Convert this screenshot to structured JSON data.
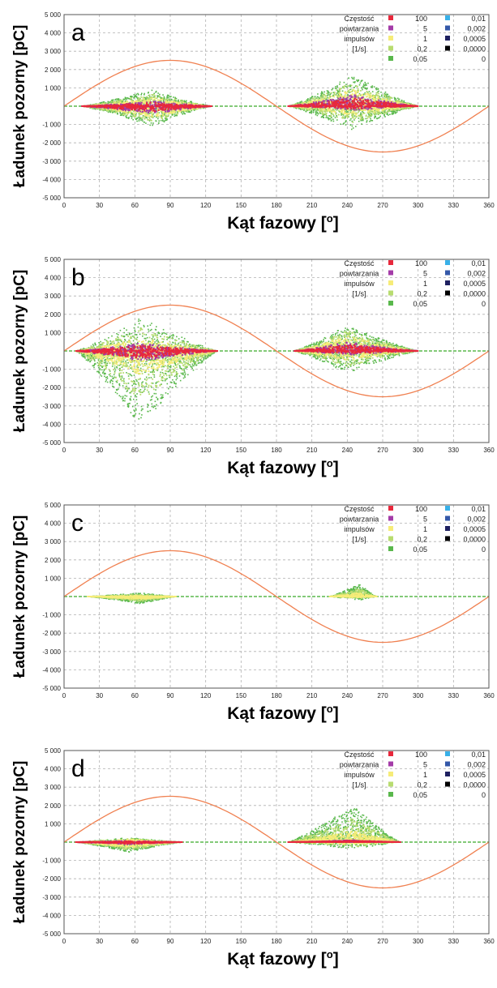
{
  "chart_data": [
    {
      "type": "scatter",
      "panel_letter": "a",
      "xlabel": "Kąt fazowy [",
      "xlabel_sup": "o",
      "xlabel_end": "]",
      "ylabel": "Ładunek pozorny [pC]",
      "xlim": [
        0,
        360
      ],
      "ylim": [
        -5000,
        5000
      ],
      "x_ticks": [
        0,
        30,
        60,
        90,
        120,
        150,
        180,
        210,
        240,
        270,
        300,
        330,
        360
      ],
      "y_ticks": [
        5000,
        4000,
        3000,
        2000,
        1000,
        -1000,
        -2000,
        -3000,
        -4000,
        -5000
      ],
      "y_tick_labels": [
        "5 000",
        "4 000",
        "3 000",
        "2 000",
        "1 000",
        "-1 000",
        "-2 000",
        "-3 000",
        "-4 000",
        "-5 000"
      ],
      "grid": true,
      "reference_sine": {
        "amplitude": 2500,
        "period_deg": 360,
        "color": "#f08050"
      },
      "legend": {
        "position": "top-right",
        "title_lines": [
          "Częstość",
          "powtarzania",
          "impulsów",
          "[1/s]"
        ],
        "entries_left": [
          {
            "label": "100",
            "color": "#e8283c"
          },
          {
            "label": "5",
            "color": "#a43ca8"
          },
          {
            "label": "1",
            "color": "#f6ec78"
          },
          {
            "label": "0,2",
            "color": "#b8dc70"
          },
          {
            "label": "0,05",
            "color": "#5ab84c"
          }
        ],
        "entries_right": [
          {
            "label": "0,01",
            "color": "#38b0e8"
          },
          {
            "label": "0,002",
            "color": "#3458a8"
          },
          {
            "label": "0,0005",
            "color": "#1e2060"
          },
          {
            "label": "0,0000",
            "color": "#000000"
          },
          {
            "label": "0",
            "color": "#ffffff"
          }
        ]
      },
      "clusters": [
        {
          "x_start": 15,
          "x_peak": 75,
          "x_end": 125,
          "y_up": 900,
          "y_down": 1100,
          "core_up": 200,
          "core_down": 300,
          "mid_up": 450,
          "mid_down": 600
        },
        {
          "x_start": 190,
          "x_peak": 245,
          "x_end": 300,
          "y_up": 1700,
          "y_down": 1300,
          "core_up": 450,
          "core_down": 150,
          "mid_up": 900,
          "mid_down": 500
        }
      ]
    },
    {
      "type": "scatter",
      "panel_letter": "b",
      "xlabel": "Kąt fazowy [",
      "xlabel_sup": "o",
      "xlabel_end": "]",
      "ylabel": "Ładunek pozorny [pC]",
      "xlim": [
        0,
        360
      ],
      "ylim": [
        -5000,
        5000
      ],
      "x_ticks": [
        0,
        30,
        60,
        90,
        120,
        150,
        180,
        210,
        240,
        270,
        300,
        330,
        360
      ],
      "y_ticks": [
        5000,
        4000,
        3000,
        2000,
        1000,
        -1000,
        -2000,
        -3000,
        -4000,
        -5000
      ],
      "y_tick_labels": [
        "5 000",
        "4 000",
        "3 000",
        "2 000",
        "1 000",
        "-1 000",
        "-2 000",
        "-3 000",
        "-4 000",
        "-5 000"
      ],
      "grid": true,
      "reference_sine": {
        "amplitude": 2500,
        "period_deg": 360,
        "color": "#f08050"
      },
      "legend": {
        "position": "top-right",
        "title_lines": [
          "Częstość",
          "powtarzania",
          "impulsów",
          "[1/s]"
        ],
        "entries_left": [
          {
            "label": "100",
            "color": "#e8283c"
          },
          {
            "label": "5",
            "color": "#a43ca8"
          },
          {
            "label": "1",
            "color": "#f6ec78"
          },
          {
            "label": "0,2",
            "color": "#b8dc70"
          },
          {
            "label": "0,05",
            "color": "#5ab84c"
          }
        ],
        "entries_right": [
          {
            "label": "0,01",
            "color": "#38b0e8"
          },
          {
            "label": "0,002",
            "color": "#3458a8"
          },
          {
            "label": "0,0005",
            "color": "#1e2060"
          },
          {
            "label": "0,0000",
            "color": "#000000"
          },
          {
            "label": "0",
            "color": "#ffffff"
          }
        ]
      },
      "clusters": [
        {
          "x_start": 10,
          "x_peak": 65,
          "x_end": 130,
          "y_up": 1800,
          "y_down": 4100,
          "core_up": 300,
          "core_down": 400,
          "mid_up": 700,
          "mid_down": 1300
        },
        {
          "x_start": 195,
          "x_peak": 240,
          "x_end": 300,
          "y_up": 1400,
          "y_down": 1200,
          "core_up": 350,
          "core_down": 150,
          "mid_up": 800,
          "mid_down": 500
        }
      ]
    },
    {
      "type": "scatter",
      "panel_letter": "c",
      "xlabel": "Kąt fazowy [",
      "xlabel_sup": "o",
      "xlabel_end": "]",
      "ylabel": "Ładunek pozorny [pC]",
      "xlim": [
        0,
        360
      ],
      "ylim": [
        -5000,
        5000
      ],
      "x_ticks": [
        0,
        30,
        60,
        90,
        120,
        150,
        180,
        210,
        240,
        270,
        300,
        330,
        360
      ],
      "y_ticks": [
        5000,
        4000,
        3000,
        2000,
        1000,
        -1000,
        -2000,
        -3000,
        -4000,
        -5000
      ],
      "y_tick_labels": [
        "5 000",
        "4 000",
        "3 000",
        "2 000",
        "1 000",
        "-1 000",
        "-2 000",
        "-3 000",
        "-4 000",
        "-5 000"
      ],
      "grid": true,
      "reference_sine": {
        "amplitude": 2500,
        "period_deg": 360,
        "color": "#f08050"
      },
      "legend": {
        "position": "top-right",
        "title_lines": [
          "Częstość",
          "powtarzania",
          "impulsów",
          "[1/s]"
        ],
        "entries_left": [
          {
            "label": "100",
            "color": "#e8283c"
          },
          {
            "label": "5",
            "color": "#a43ca8"
          },
          {
            "label": "1",
            "color": "#f6ec78"
          },
          {
            "label": "0,2",
            "color": "#b8dc70"
          },
          {
            "label": "0,05",
            "color": "#5ab84c"
          }
        ],
        "entries_right": [
          {
            "label": "0,01",
            "color": "#38b0e8"
          },
          {
            "label": "0,002",
            "color": "#3458a8"
          },
          {
            "label": "0,0005",
            "color": "#1e2060"
          },
          {
            "label": "0,0000",
            "color": "#000000"
          },
          {
            "label": "0",
            "color": "#ffffff"
          }
        ]
      },
      "clusters": [
        {
          "x_start": 20,
          "x_peak": 65,
          "x_end": 95,
          "y_up": 200,
          "y_down": 400,
          "core_up": 0,
          "core_down": 0,
          "mid_up": 60,
          "mid_down": 150
        },
        {
          "x_start": 225,
          "x_peak": 250,
          "x_end": 265,
          "y_up": 700,
          "y_down": 200,
          "core_up": 0,
          "core_down": 0,
          "mid_up": 200,
          "mid_down": 60
        }
      ]
    },
    {
      "type": "scatter",
      "panel_letter": "d",
      "xlabel": "Kąt fazowy [",
      "xlabel_sup": "o",
      "xlabel_end": "]",
      "ylabel": "Ładunek pozorny [pC]",
      "xlim": [
        0,
        360
      ],
      "ylim": [
        -5000,
        5000
      ],
      "x_ticks": [
        0,
        30,
        60,
        90,
        120,
        150,
        180,
        210,
        240,
        270,
        300,
        330,
        360
      ],
      "y_ticks": [
        5000,
        4000,
        3000,
        2000,
        1000,
        -1000,
        -2000,
        -3000,
        -4000,
        -5000
      ],
      "y_tick_labels": [
        "5 000",
        "4 000",
        "3 000",
        "2 000",
        "1 000",
        "-1 000",
        "-2 000",
        "-3 000",
        "-4 000",
        "-5 000"
      ],
      "grid": true,
      "reference_sine": {
        "amplitude": 2500,
        "period_deg": 360,
        "color": "#f08050"
      },
      "legend": {
        "position": "top-right",
        "title_lines": [
          "Częstość",
          "powtarzania",
          "impulsów",
          "[1/s]"
        ],
        "entries_left": [
          {
            "label": "100",
            "color": "#e8283c"
          },
          {
            "label": "5",
            "color": "#a43ca8"
          },
          {
            "label": "1",
            "color": "#f6ec78"
          },
          {
            "label": "0,2",
            "color": "#b8dc70"
          },
          {
            "label": "0,05",
            "color": "#5ab84c"
          }
        ],
        "entries_right": [
          {
            "label": "0,01",
            "color": "#38b0e8"
          },
          {
            "label": "0,002",
            "color": "#3458a8"
          },
          {
            "label": "0,0005",
            "color": "#1e2060"
          },
          {
            "label": "0,0000",
            "color": "#000000"
          },
          {
            "label": "0",
            "color": "#ffffff"
          }
        ]
      },
      "clusters": [
        {
          "x_start": 10,
          "x_peak": 55,
          "x_end": 100,
          "y_up": 250,
          "y_down": 550,
          "core_up": 60,
          "core_down": 100,
          "mid_up": 150,
          "mid_down": 300
        },
        {
          "x_start": 190,
          "x_peak": 245,
          "x_end": 285,
          "y_up": 2000,
          "y_down": 400,
          "core_up": 80,
          "core_down": 0,
          "mid_up": 600,
          "mid_down": 120
        }
      ]
    }
  ]
}
